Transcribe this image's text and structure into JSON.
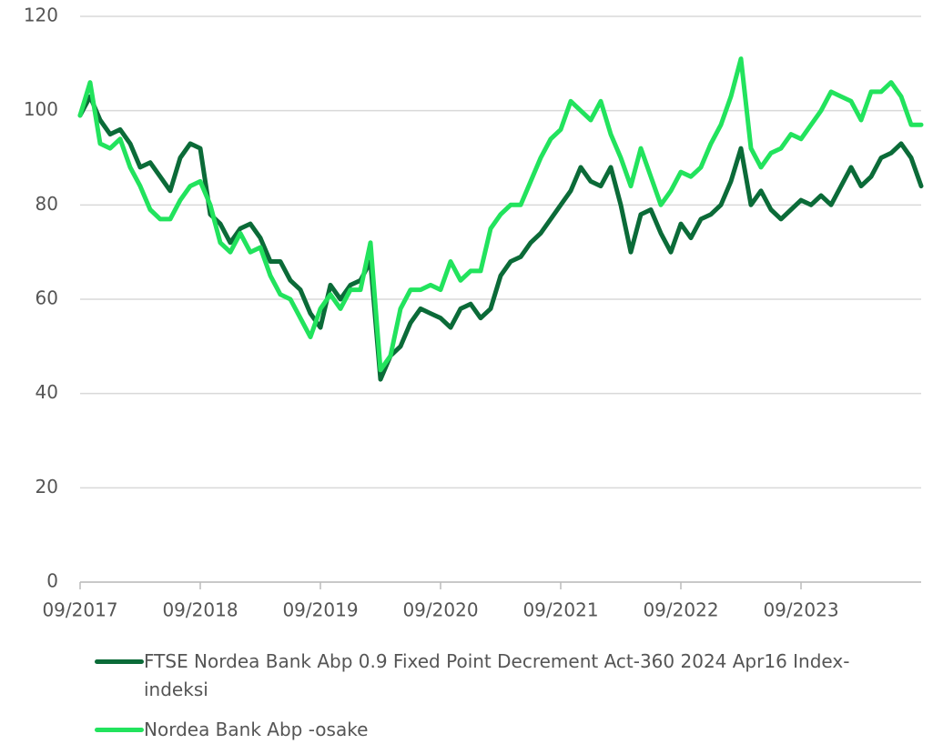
{
  "chart_data": {
    "type": "line",
    "x": [
      "09/2017",
      "10/2017",
      "11/2017",
      "12/2017",
      "01/2018",
      "02/2018",
      "03/2018",
      "04/2018",
      "05/2018",
      "06/2018",
      "07/2018",
      "08/2018",
      "09/2018",
      "10/2018",
      "11/2018",
      "12/2018",
      "01/2019",
      "02/2019",
      "03/2019",
      "04/2019",
      "05/2019",
      "06/2019",
      "07/2019",
      "08/2019",
      "09/2019",
      "10/2019",
      "11/2019",
      "12/2019",
      "01/2020",
      "02/2020",
      "03/2020",
      "04/2020",
      "05/2020",
      "06/2020",
      "07/2020",
      "08/2020",
      "09/2020",
      "10/2020",
      "11/2020",
      "12/2020",
      "01/2021",
      "02/2021",
      "03/2021",
      "04/2021",
      "05/2021",
      "06/2021",
      "07/2021",
      "08/2021",
      "09/2021",
      "10/2021",
      "11/2021",
      "12/2021",
      "01/2022",
      "02/2022",
      "03/2022",
      "04/2022",
      "05/2022",
      "06/2022",
      "07/2022",
      "08/2022",
      "09/2022",
      "10/2022",
      "11/2022",
      "12/2022",
      "01/2023",
      "02/2023",
      "03/2023",
      "04/2023",
      "05/2023",
      "06/2023",
      "07/2023",
      "08/2023",
      "09/2023",
      "10/2023",
      "11/2023",
      "12/2023",
      "01/2024",
      "02/2024",
      "03/2024",
      "04/2024",
      "05/2024",
      "06/2024",
      "07/2024",
      "08/2024",
      "09/2024"
    ],
    "series": [
      {
        "name": "FTSE Nordea Bank Abp 0.9 Fixed Point Decrement Act-360 2024 Apr16 Index-indeksi",
        "color": "#0b6b38",
        "values": [
          99,
          103,
          98,
          95,
          96,
          93,
          88,
          89,
          86,
          83,
          90,
          93,
          92,
          78,
          76,
          72,
          75,
          76,
          73,
          68,
          68,
          64,
          62,
          57,
          54,
          63,
          60,
          63,
          64,
          68,
          43,
          48,
          50,
          55,
          58,
          57,
          56,
          54,
          58,
          59,
          56,
          58,
          65,
          68,
          69,
          72,
          74,
          77,
          80,
          83,
          88,
          85,
          84,
          88,
          80,
          70,
          78,
          79,
          74,
          70,
          76,
          73,
          77,
          78,
          80,
          85,
          92,
          80,
          83,
          79,
          77,
          79,
          81,
          80,
          82,
          80,
          84,
          88,
          84,
          86,
          90,
          91,
          93,
          90,
          84
        ]
      },
      {
        "name": "Nordea Bank Abp -osake",
        "color": "#22e35d",
        "values": [
          99,
          106,
          93,
          92,
          94,
          88,
          84,
          79,
          77,
          77,
          81,
          84,
          85,
          80,
          72,
          70,
          74,
          70,
          71,
          65,
          61,
          60,
          56,
          52,
          58,
          61,
          58,
          62,
          62,
          72,
          45,
          48,
          58,
          62,
          62,
          63,
          62,
          68,
          64,
          66,
          66,
          75,
          78,
          80,
          80,
          85,
          90,
          94,
          96,
          102,
          100,
          98,
          102,
          95,
          90,
          84,
          92,
          86,
          80,
          83,
          87,
          86,
          88,
          93,
          97,
          103,
          111,
          92,
          88,
          91,
          92,
          95,
          94,
          97,
          100,
          104,
          103,
          102,
          98,
          104,
          104,
          106,
          103,
          97,
          97
        ]
      }
    ],
    "xlim": [
      "09/2017",
      "09/2024"
    ],
    "xticks": [
      "09/2017",
      "09/2018",
      "09/2019",
      "09/2020",
      "09/2021",
      "09/2022",
      "09/2023"
    ],
    "ylim": [
      0,
      120
    ],
    "yticks": [
      0,
      20,
      40,
      60,
      80,
      100,
      120
    ],
    "grid": true,
    "legend": "bottom"
  }
}
